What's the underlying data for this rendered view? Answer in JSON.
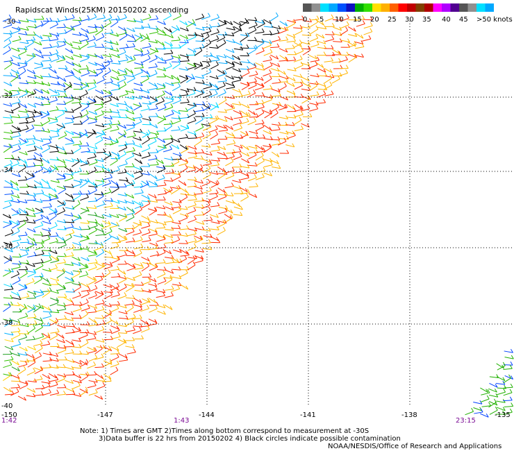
{
  "title": "Rapidscat Winds(25KM) 20150202 ascending",
  "legend": {
    "colors": [
      "#555555",
      "#909090",
      "#00e0ff",
      "#00a8ff",
      "#0050ff",
      "#1010c0",
      "#00b000",
      "#30e000",
      "#ffe000",
      "#ffb000",
      "#ff6000",
      "#ff0000",
      "#c00000",
      "#804000",
      "#b00000",
      "#ff00ff",
      "#b000ff",
      "#500090"
    ],
    "labels": [
      "0",
      "5",
      "10",
      "15",
      "20",
      "25",
      "30",
      "35",
      "40",
      "45",
      ">50 knots"
    ]
  },
  "lat_labels": [
    "-30",
    "-32",
    "-34",
    "-36",
    "-38",
    "-40"
  ],
  "lon_labels": [
    "-150",
    "-147",
    "-144",
    "-141",
    "-138",
    "-135"
  ],
  "time_labels": [
    "1:42",
    "1:43",
    "23:15"
  ],
  "notes": {
    "line1": "Note: 1) Times are GMT 2)Times along bottom correspond to measurement at -30S",
    "line2": "3)Data buffer is 22 hrs from 20150202 4) Black circles indicate possible contamination",
    "credit": "NOAA/NESDIS/Office of Research and Applications"
  }
}
